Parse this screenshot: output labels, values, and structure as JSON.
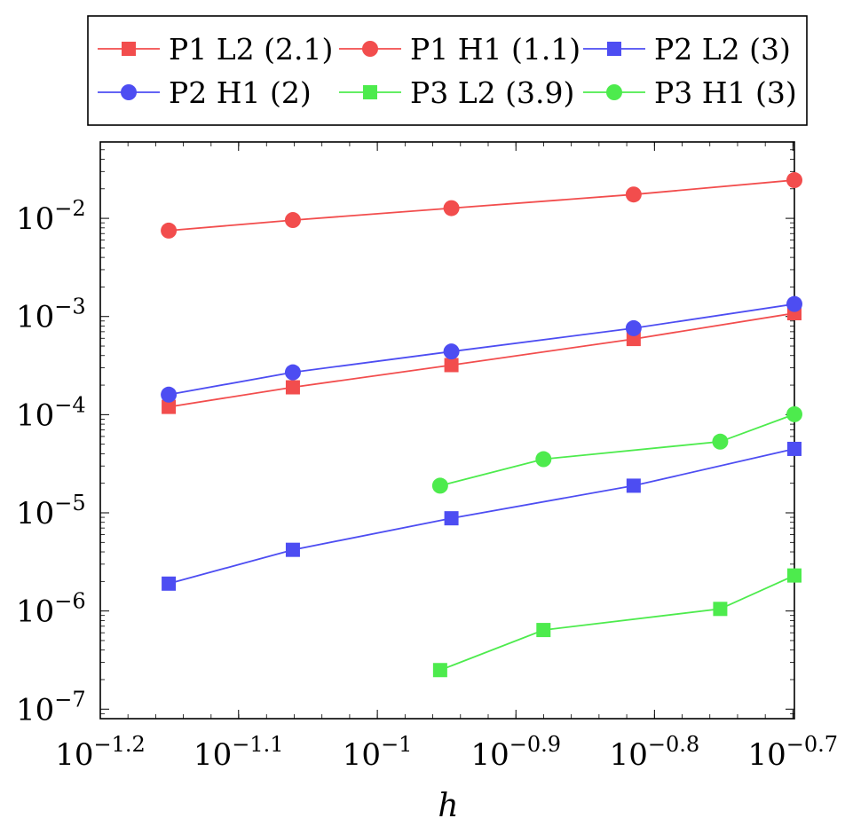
{
  "chart_data": {
    "type": "line",
    "xscale": "log",
    "yscale": "log",
    "xlim": [
      0.0631,
      0.2
    ],
    "ylim": [
      8e-08,
      0.06
    ],
    "xlabel": "h",
    "ylabel": "",
    "grid": false,
    "legend_position": "top, above plot, 3 columns",
    "x_ticks": [
      {
        "base": "10",
        "exp": "−1.2",
        "value": 0.0631
      },
      {
        "base": "10",
        "exp": "−1.1",
        "value": 0.0794
      },
      {
        "base": "10",
        "exp": "−1",
        "value": 0.1
      },
      {
        "base": "10",
        "exp": "−0.9",
        "value": 0.1259
      },
      {
        "base": "10",
        "exp": "−0.8",
        "value": 0.1585
      },
      {
        "base": "10",
        "exp": "−0.7",
        "value": 0.1995
      }
    ],
    "y_ticks": [
      {
        "base": "10",
        "exp": "−2",
        "value": 0.01
      },
      {
        "base": "10",
        "exp": "−3",
        "value": 0.001
      },
      {
        "base": "10",
        "exp": "−4",
        "value": 0.0001
      },
      {
        "base": "10",
        "exp": "−5",
        "value": 1e-05
      },
      {
        "base": "10",
        "exp": "−6",
        "value": 1e-06
      },
      {
        "base": "10",
        "exp": "−7",
        "value": 1e-07
      }
    ],
    "series": [
      {
        "name": "P1 L2 (2.1)",
        "color": "#f24d4d",
        "marker": "square",
        "x": [
          0.0707,
          0.0869,
          0.1131,
          0.1531,
          0.2
        ],
        "y": [
          0.00012,
          0.00019,
          0.00032,
          0.00059,
          0.00108
        ]
      },
      {
        "name": "P1 H1 (1.1)",
        "color": "#f24d4d",
        "marker": "circle",
        "x": [
          0.0707,
          0.0869,
          0.1131,
          0.1531,
          0.2
        ],
        "y": [
          0.0075,
          0.0096,
          0.0127,
          0.0175,
          0.0245
        ]
      },
      {
        "name": "P2 L2 (3)",
        "color": "#4d4df2",
        "marker": "square",
        "x": [
          0.0707,
          0.0869,
          0.1131,
          0.1531,
          0.2
        ],
        "y": [
          1.9e-06,
          4.2e-06,
          8.8e-06,
          1.89e-05,
          4.48e-05
        ]
      },
      {
        "name": "P2 H1 (2)",
        "color": "#4d4df2",
        "marker": "circle",
        "x": [
          0.0707,
          0.0869,
          0.1131,
          0.1531,
          0.2
        ],
        "y": [
          0.00016,
          0.00027,
          0.00044,
          0.00076,
          0.00134
        ]
      },
      {
        "name": "P3 L2 (3.9)",
        "color": "#4deb4d",
        "marker": "square",
        "x": [
          0.111,
          0.1318,
          0.1768,
          0.2
        ],
        "y": [
          2.5e-07,
          6.4e-07,
          1.05e-06,
          2.3e-06
        ]
      },
      {
        "name": "P3 H1 (3)",
        "color": "#4deb4d",
        "marker": "circle",
        "x": [
          0.111,
          0.1318,
          0.1768,
          0.2
        ],
        "y": [
          1.89e-05,
          3.52e-05,
          5.31e-05,
          0.000101
        ]
      }
    ]
  }
}
